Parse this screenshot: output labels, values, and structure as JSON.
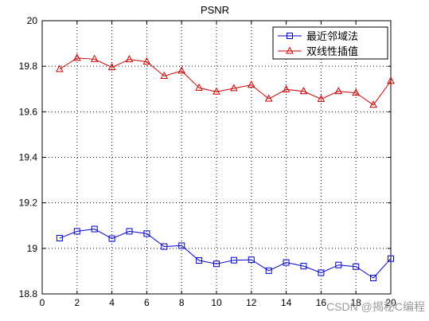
{
  "chart_data": {
    "type": "line",
    "title": "PSNR",
    "xlabel": "",
    "ylabel": "",
    "xlim": [
      0,
      20
    ],
    "ylim": [
      18.8,
      20
    ],
    "xticks": [
      "0",
      "2",
      "4",
      "6",
      "8",
      "10",
      "12",
      "14",
      "16",
      "18",
      "20"
    ],
    "yticks": [
      "18.8",
      "19",
      "19.2",
      "19.4",
      "19.6",
      "19.8",
      "20"
    ],
    "grid": true,
    "legend_position": "top-right",
    "x": [
      1,
      2,
      3,
      4,
      5,
      6,
      7,
      8,
      9,
      10,
      11,
      12,
      13,
      14,
      15,
      16,
      17,
      18,
      19,
      20
    ],
    "series": [
      {
        "name": "最近邻域法",
        "color": "#0000cc",
        "marker": "square",
        "values": [
          19.045,
          19.075,
          19.085,
          19.043,
          19.075,
          19.065,
          19.008,
          19.012,
          18.947,
          18.932,
          18.948,
          18.95,
          18.902,
          18.938,
          18.922,
          18.893,
          18.927,
          18.92,
          18.87,
          18.955
        ]
      },
      {
        "name": "双线性插值",
        "color": "#cc0000",
        "marker": "triangle",
        "values": [
          19.787,
          19.836,
          19.831,
          19.795,
          19.83,
          19.82,
          19.757,
          19.78,
          19.705,
          19.688,
          19.703,
          19.718,
          19.657,
          19.698,
          19.69,
          19.656,
          19.69,
          19.683,
          19.63,
          19.735
        ]
      }
    ]
  },
  "watermark": "CSDN @揭秘C编程"
}
